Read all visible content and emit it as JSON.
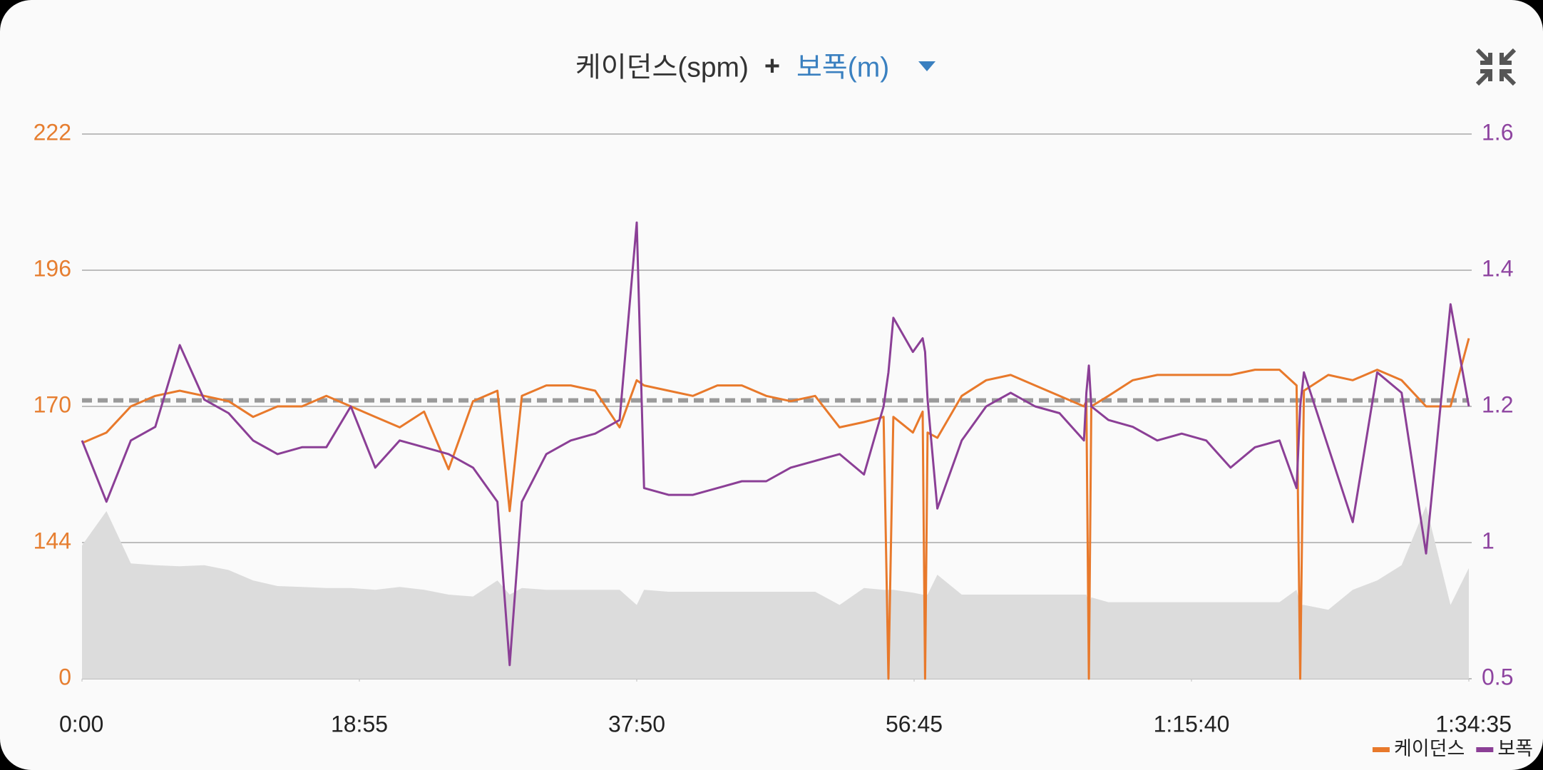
{
  "chart_data": {
    "type": "line",
    "title_left": "케이던스(spm)",
    "title_joiner": "+",
    "title_right": "보폭(m)",
    "x": [
      0,
      100,
      200,
      300,
      400,
      500,
      600,
      700,
      800,
      900,
      1000,
      1100,
      1200,
      1300,
      1400,
      1500,
      1600,
      1700,
      1750,
      1800,
      1900,
      2000,
      2100,
      2200,
      2270,
      2300,
      2400,
      2500,
      2600,
      2700,
      2800,
      2900,
      3000,
      3100,
      3200,
      3280,
      3300,
      3320,
      3400,
      3440,
      3450,
      3460,
      3500,
      3600,
      3700,
      3800,
      3900,
      4000,
      4100,
      4110,
      4120,
      4130,
      4200,
      4300,
      4400,
      4500,
      4600,
      4700,
      4800,
      4900,
      4970,
      4985,
      5000,
      5100,
      5200,
      5300,
      5400,
      5500,
      5600,
      5675
    ],
    "xlim": [
      0,
      5675
    ],
    "xticks": [
      {
        "value": 0,
        "label": "0:00"
      },
      {
        "value": 1135,
        "label": "18:55"
      },
      {
        "value": 2270,
        "label": "37:50"
      },
      {
        "value": 3405,
        "label": "56:45"
      },
      {
        "value": 4540,
        "label": "1:15:40"
      },
      {
        "value": 5675,
        "label": "1:34:35"
      }
    ],
    "ylim": [
      0,
      222
    ],
    "yticks": [
      0,
      144,
      170,
      196,
      222
    ],
    "y2lim": [
      0.5,
      1.6
    ],
    "y2ticks": [
      0.5,
      1,
      1.2,
      1.4,
      1.6
    ],
    "ycolor": "#e67e30",
    "y2color": "#8e44a0",
    "grid": true,
    "legend": "bottom-right",
    "series": [
      {
        "name": "케이던스",
        "color": "#e8792b",
        "axis": "y",
        "values": [
          163,
          165,
          170,
          172,
          173,
          172,
          171,
          168,
          170,
          170,
          172,
          170,
          168,
          166,
          169,
          158,
          171,
          173,
          150,
          172,
          174,
          174,
          173,
          166,
          175,
          174,
          173,
          172,
          174,
          174,
          172,
          171,
          172,
          166,
          167,
          168,
          0,
          168,
          165,
          169,
          0,
          165,
          164,
          172,
          175,
          176,
          174,
          172,
          170,
          171,
          0,
          170,
          172,
          175,
          176,
          176,
          176,
          176,
          177,
          177,
          174,
          0,
          173,
          176,
          175,
          177,
          175,
          170,
          170,
          183
        ]
      },
      {
        "name": "보폭",
        "color": "#8b3f96",
        "axis": "y2",
        "values": [
          1.15,
          1.06,
          1.15,
          1.17,
          1.29,
          1.21,
          1.19,
          1.15,
          1.13,
          1.14,
          1.14,
          1.2,
          1.11,
          1.15,
          1.14,
          1.13,
          1.11,
          1.06,
          0.55,
          1.06,
          1.13,
          1.15,
          1.16,
          1.18,
          1.47,
          1.08,
          1.07,
          1.07,
          1.08,
          1.09,
          1.09,
          1.11,
          1.12,
          1.13,
          1.1,
          1.2,
          1.25,
          1.33,
          1.28,
          1.3,
          1.28,
          1.21,
          1.05,
          1.15,
          1.2,
          1.22,
          1.2,
          1.19,
          1.15,
          1.22,
          1.26,
          1.2,
          1.18,
          1.17,
          1.15,
          1.16,
          1.15,
          1.11,
          1.14,
          1.15,
          1.08,
          1.2,
          1.25,
          1.14,
          1.03,
          1.25,
          1.22,
          0.96,
          1.35,
          1.2
        ]
      },
      {
        "color": "#dcdcdc",
        "axis": "y",
        "area": true,
        "values": [
          141,
          150,
          122,
          120,
          119,
          120,
          115,
          104,
          98,
          97,
          96,
          96,
          94,
          97,
          94,
          89,
          87,
          104,
          89,
          96,
          94,
          94,
          94,
          94,
          78,
          94,
          92,
          92,
          92,
          92,
          92,
          92,
          92,
          78,
          96,
          94,
          94,
          94,
          91,
          89,
          89,
          89,
          110,
          89,
          89,
          89,
          89,
          89,
          89,
          89,
          78,
          86,
          81,
          81,
          81,
          81,
          81,
          81,
          81,
          81,
          94,
          78,
          78,
          73,
          94,
          104,
          120,
          151,
          78,
          117
        ]
      }
    ],
    "reference_lines": [
      {
        "value": 171,
        "axis": "y",
        "color": "#9a9a9a"
      },
      {
        "value": 1.21,
        "axis": "y2",
        "color": "#9a9a9a"
      }
    ]
  }
}
